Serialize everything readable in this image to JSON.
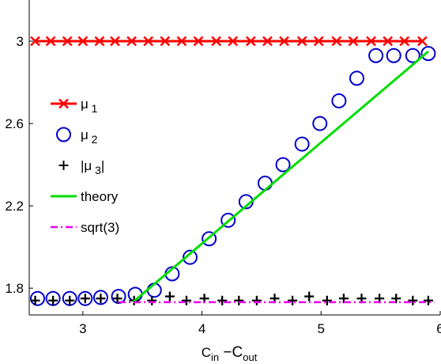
{
  "chart_data": {
    "type": "line",
    "title": "",
    "xlabel": "C_in − C_out",
    "xlabel_parts": {
      "c1": "C",
      "s1": "in",
      "mid": " −C",
      "s2": "out"
    },
    "ylabel": "",
    "xlim": [
      2.55,
      6.0
    ],
    "ylim": [
      1.67,
      3.2
    ],
    "xticks": [
      3,
      4,
      5,
      6
    ],
    "yticks": [
      1.8,
      2.2,
      2.6,
      3
    ],
    "xtick_labels": [
      "3",
      "4",
      "5",
      "6"
    ],
    "ytick_labels": [
      "1.8",
      "2.2",
      "2.6",
      "3"
    ],
    "grid": false,
    "legend_placement": "left",
    "x": [
      2.6,
      2.73,
      2.87,
      3.0,
      3.14,
      3.27,
      3.41,
      3.55,
      3.69,
      3.83,
      3.97,
      4.12,
      4.26,
      4.41,
      4.55,
      4.69,
      4.84,
      4.98,
      5.13,
      5.27,
      5.42,
      5.56,
      5.7,
      5.85
    ],
    "series": [
      {
        "name": "μ1",
        "legend_parts": {
          "base": "μ",
          "sub": "1"
        },
        "style": "line-x",
        "color": "#ff0000",
        "values": [
          3,
          3,
          3,
          3,
          3,
          3,
          3,
          3,
          3,
          3,
          3,
          3,
          3,
          3,
          3,
          3,
          3,
          3,
          3,
          3,
          3,
          3,
          3,
          3
        ]
      },
      {
        "name": "μ2",
        "legend_parts": {
          "base": "μ",
          "sub": "2"
        },
        "style": "circle",
        "color": "#0000cc",
        "x": [
          2.62,
          2.75,
          2.89,
          3.02,
          3.15,
          3.3,
          3.44,
          3.6,
          3.75,
          3.9,
          4.06,
          4.22,
          4.37,
          4.53,
          4.68,
          4.84,
          4.99,
          5.15,
          5.3,
          5.46,
          5.61,
          5.77,
          5.9
        ],
        "values": [
          1.75,
          1.75,
          1.75,
          1.75,
          1.755,
          1.76,
          1.77,
          1.79,
          1.87,
          1.95,
          2.04,
          2.13,
          2.22,
          2.31,
          2.4,
          2.5,
          2.6,
          2.71,
          2.82,
          2.93,
          2.93,
          2.93,
          2.94
        ]
      },
      {
        "name": "|μ3|",
        "legend_parts": {
          "base": "|μ",
          "sub": "3",
          "tail": "|"
        },
        "style": "plus",
        "color": "#000000",
        "x": [
          2.6,
          2.75,
          2.89,
          3.02,
          3.15,
          3.29,
          3.43,
          3.58,
          3.73,
          3.87,
          4.02,
          4.17,
          4.31,
          4.46,
          4.61,
          4.76,
          4.9,
          5.05,
          5.19,
          5.34,
          5.49,
          5.63,
          5.77,
          5.9
        ],
        "values": [
          1.74,
          1.74,
          1.74,
          1.75,
          1.75,
          1.75,
          1.74,
          1.74,
          1.76,
          1.74,
          1.75,
          1.74,
          1.74,
          1.74,
          1.75,
          1.74,
          1.76,
          1.74,
          1.75,
          1.75,
          1.75,
          1.75,
          1.74,
          1.74
        ]
      },
      {
        "name": "theory",
        "style": "solid-line",
        "color": "#00dd00",
        "x": [
          3.42,
          5.9
        ],
        "values": [
          1.732,
          2.95
        ]
      },
      {
        "name": "sqrt(3)",
        "style": "dash-dot-line",
        "color": "#ee00ee",
        "x": [
          3.3,
          5.95
        ],
        "values": [
          1.732,
          1.732
        ]
      }
    ]
  }
}
